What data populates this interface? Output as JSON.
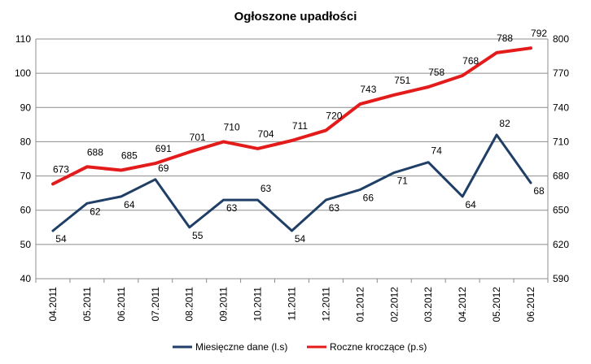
{
  "chart_data": {
    "type": "line",
    "title": "Ogłoszone upadłości",
    "categories": [
      "04.2011",
      "05.2011",
      "06.2011",
      "07.2011",
      "08.2011",
      "09.2011",
      "10.2011",
      "11.2011",
      "12.2011",
      "01.2012",
      "02.2012",
      "03.2012",
      "04.2012",
      "05.2012",
      "06.2012"
    ],
    "y_left": {
      "min": 40,
      "max": 110,
      "step": 10,
      "ticks": [
        "40",
        "50",
        "60",
        "70",
        "80",
        "90",
        "100",
        "110"
      ]
    },
    "y_right": {
      "min": 590,
      "max": 800,
      "step": 30,
      "ticks": [
        "590",
        "620",
        "650",
        "680",
        "710",
        "740",
        "770",
        "800"
      ]
    },
    "grid": true,
    "legend_position": "bottom",
    "series": [
      {
        "name": "Miesięczne dane (l.s)",
        "axis": "left",
        "color": "#1F3F66",
        "values": [
          54,
          62,
          64,
          69,
          55,
          63,
          63,
          54,
          63,
          66,
          71,
          74,
          64,
          82,
          68
        ],
        "labels": [
          "54",
          "62",
          "64",
          "69",
          "55",
          "63",
          "63",
          "54",
          "63",
          "66",
          "71",
          "74",
          "64",
          "82",
          "68"
        ]
      },
      {
        "name": "Roczne kroczące (p.s)",
        "axis": "right",
        "color": "#E31B1B",
        "values": [
          673,
          688,
          685,
          691,
          701,
          710,
          704,
          711,
          720,
          743,
          751,
          758,
          768,
          788,
          792
        ],
        "labels": [
          "673",
          "688",
          "685",
          "691",
          "701",
          "710",
          "704",
          "711",
          "720",
          "743",
          "751",
          "758",
          "768",
          "788",
          "792"
        ]
      }
    ]
  }
}
